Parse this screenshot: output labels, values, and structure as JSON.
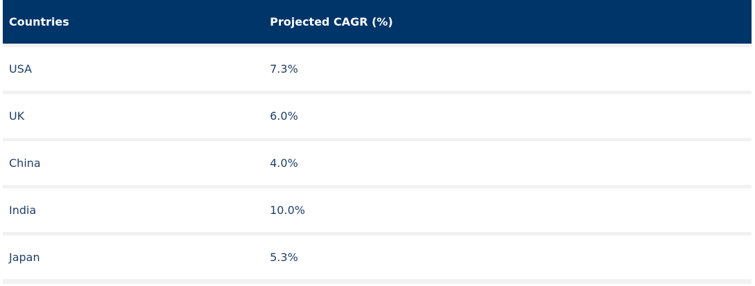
{
  "table": {
    "headers": [
      "Countries",
      "Projected CAGR (%)"
    ],
    "rows": [
      [
        "USA",
        "7.3%"
      ],
      [
        "UK",
        "6.0%"
      ],
      [
        "China",
        "4.0%"
      ],
      [
        "India",
        "10.0%"
      ],
      [
        "Japan",
        "5.3%"
      ]
    ]
  },
  "colors": {
    "header_bg": "#00356a",
    "header_text": "#ffffff",
    "row_bg": "#ffffff",
    "row_separator": "#f2f2f2",
    "row_text": "#1f3f6a"
  }
}
